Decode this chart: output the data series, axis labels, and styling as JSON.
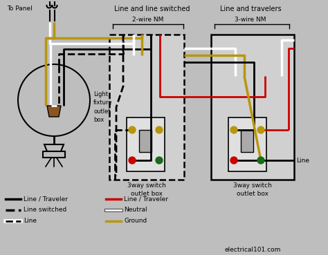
{
  "bg_color": "#bebebe",
  "colors": {
    "black": "#000000",
    "white": "#ffffff",
    "red": "#cc0000",
    "ground": "#b8960c",
    "brown": "#8B5520",
    "green": "#1a6b1a",
    "box_fill": "#d0d0d0",
    "switch_fill": "#e0e0e0",
    "toggle_fill": "#aaaaaa",
    "dark_gray": "#444444"
  },
  "labels": {
    "to_panel": "To Panel",
    "line_line_switched": "Line and line switched",
    "line_travelers": "Line and travelers",
    "wire_2nm": "2-wire NM",
    "wire_3nm": "3-wire NM",
    "light_fixture": "Light\nfixture\noutlet\nbox",
    "switch1": "3way switch\noutlet box",
    "switch2": "3way switch\noutlet box",
    "line_label": "Line",
    "website": "electrical101.com"
  },
  "legend": [
    {
      "label": "Line / Traveler",
      "color": "#000000",
      "style": "solid",
      "col": 0,
      "row": 0
    },
    {
      "label": "Line switched",
      "color": "#000000",
      "style": "dashed",
      "col": 0,
      "row": 1
    },
    {
      "label": "Line",
      "color": "#000000",
      "style": "dashdot",
      "col": 0,
      "row": 2
    },
    {
      "label": "Line / Traveler",
      "color": "#cc0000",
      "style": "solid",
      "col": 1,
      "row": 0
    },
    {
      "label": "Neutral",
      "color": "#ffffff",
      "style": "solid",
      "col": 1,
      "row": 1
    },
    {
      "label": "Ground",
      "color": "#b8960c",
      "style": "solid",
      "col": 1,
      "row": 2
    }
  ]
}
